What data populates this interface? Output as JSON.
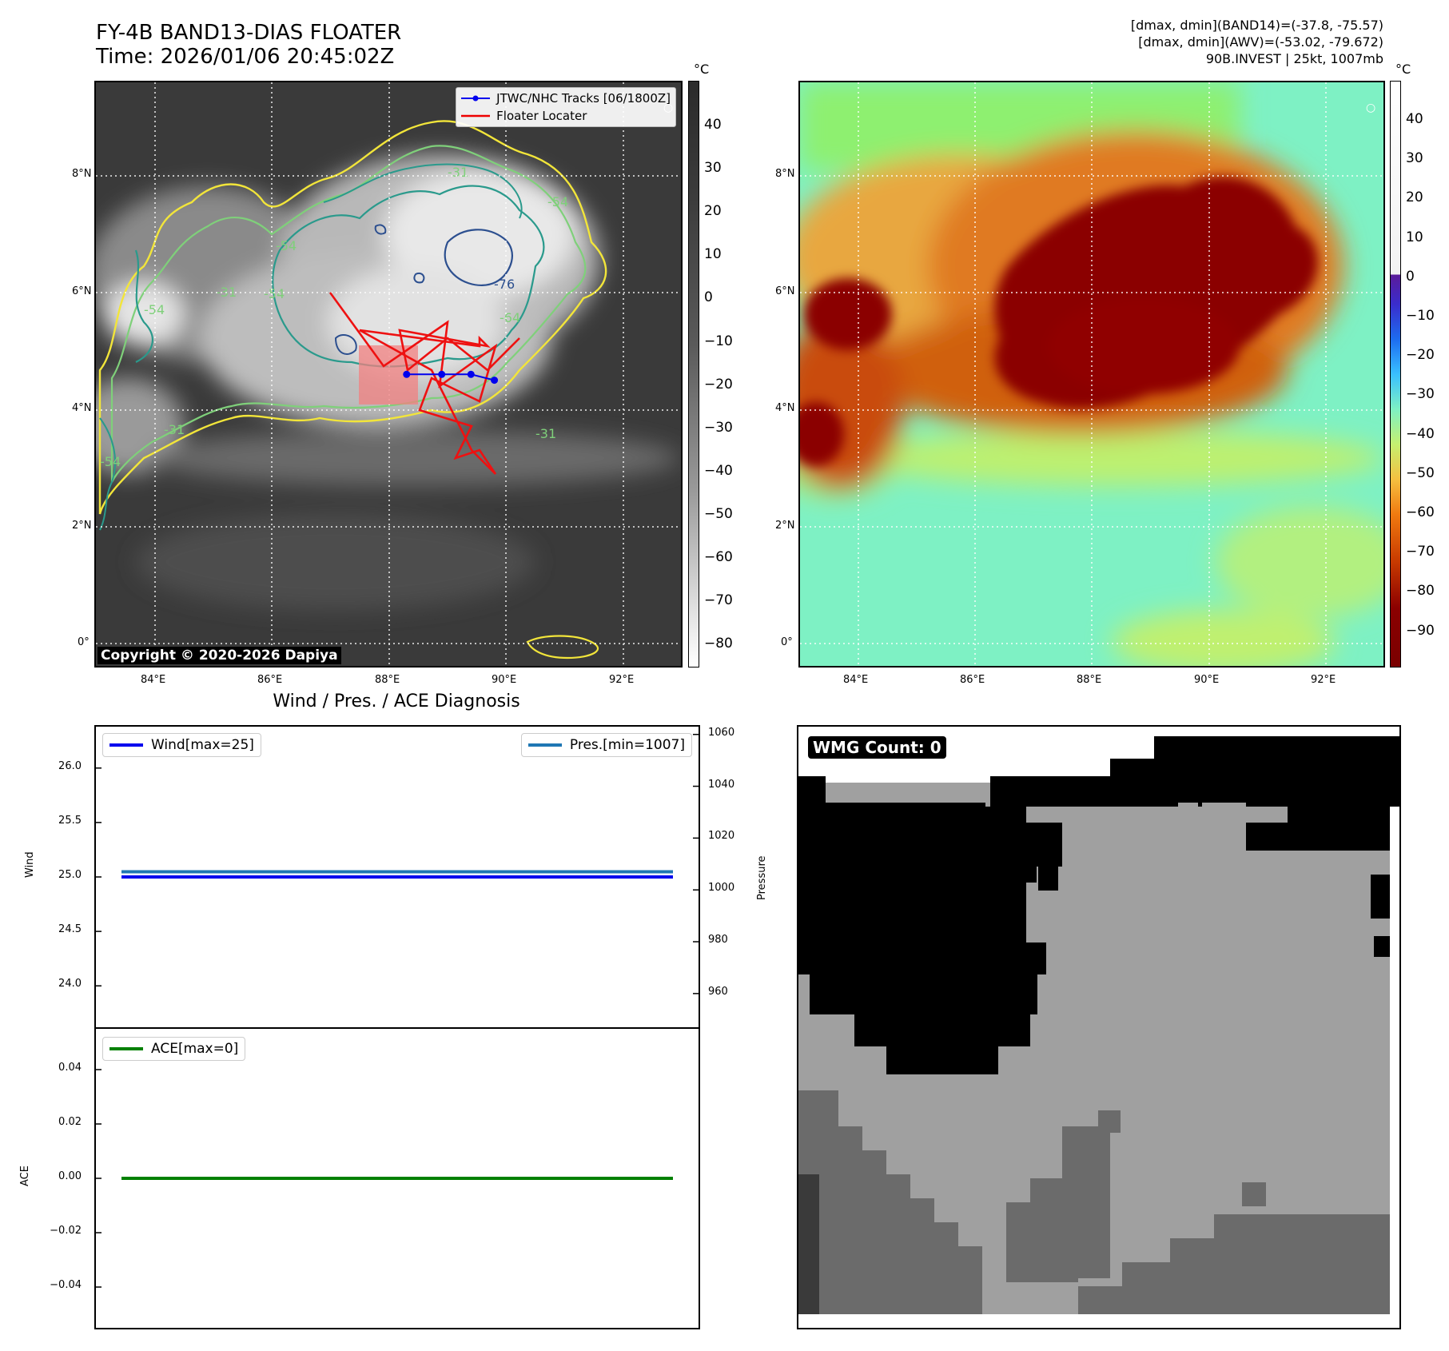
{
  "header": {
    "title_line1": "FY-4B BAND13-DIAS FLOATER",
    "title_line2": "Time: 2026/01/06 20:45:02Z",
    "info_line1": "[dmax, dmin](BAND14)=(-37.8, -75.57)",
    "info_line2": "[dmax, dmin](AWV)=(-53.02, -79.672)",
    "info_line3": "90B.INVEST | 25kt, 1007mb"
  },
  "map": {
    "lat_ticks": [
      "8°N",
      "6°N",
      "4°N",
      "2°N",
      "0°"
    ],
    "lon_ticks": [
      "84°E",
      "86°E",
      "88°E",
      "90°E",
      "92°E"
    ],
    "legend_track": "JTWC/NHC Tracks [06/1800Z]",
    "legend_locator": "Floater Locater",
    "copyright": "Copyright © 2020-2026 Dapiya",
    "contour_labels": [
      "-31",
      "-31",
      "-54",
      "-54",
      "-54",
      "-54",
      "-64",
      "-76",
      "-31",
      "-31",
      "-54"
    ]
  },
  "colorbars": {
    "unit": "°C",
    "gray_ticks": [
      "40",
      "30",
      "20",
      "10",
      "0",
      "−10",
      "−20",
      "−30",
      "−40",
      "−50",
      "−60",
      "−70",
      "−80"
    ],
    "color_ticks": [
      "40",
      "30",
      "20",
      "10",
      "0",
      "−10",
      "−20",
      "−30",
      "−40",
      "−50",
      "−60",
      "−70",
      "−80",
      "−90"
    ]
  },
  "diagnosis": {
    "title": "Wind / Pres. / ACE Diagnosis",
    "wind_legend": "Wind[max=25]",
    "pres_legend": "Pres.[min=1007]",
    "ace_legend": "ACE[max=0]",
    "wind_axis_label": "Wind",
    "pres_axis_label": "Pressure",
    "ace_axis_label": "ACE"
  },
  "wmg": {
    "label": "WMG Count: 0"
  },
  "colors": {
    "track": "#0000ee",
    "locator": "#ee0000",
    "wind": "#0000ee",
    "pres": "#1f77b4",
    "ace": "#008000",
    "contour_yellow": "#f2e53a",
    "contour_green": "#7fd07a",
    "contour_teal": "#2a9a8c",
    "contour_blue": "#2c4f8f"
  },
  "chart_data": [
    {
      "type": "line",
      "name": "wind-pressure",
      "series": [
        {
          "name": "Wind",
          "axis": "left",
          "x": [
            0,
            1
          ],
          "values": [
            25,
            25
          ]
        },
        {
          "name": "Pres.",
          "axis": "right",
          "x": [
            0,
            1
          ],
          "values": [
            1007,
            1007
          ]
        }
      ],
      "yticks_left": [
        24.0,
        24.5,
        25.0,
        25.5,
        26.0
      ],
      "yticks_right": [
        960,
        980,
        1000,
        1020,
        1040,
        1060
      ],
      "ylim_left": [
        23.62,
        26.38
      ],
      "ylim_right": [
        947,
        1063
      ],
      "ylabel": "Wind",
      "ylabel_right": "Pressure"
    },
    {
      "type": "line",
      "name": "ace",
      "series": [
        {
          "name": "ACE",
          "x": [
            0,
            1
          ],
          "values": [
            0,
            0
          ]
        }
      ],
      "yticks": [
        -0.04,
        -0.02,
        0.0,
        0.02,
        0.04
      ],
      "ylim": [
        -0.055,
        0.055
      ],
      "ylabel": "ACE"
    },
    {
      "type": "line",
      "name": "floater-track",
      "x": [
        88.3,
        88.9,
        89.4,
        89.8
      ],
      "values": [
        4.6,
        4.6,
        4.6,
        4.5
      ],
      "xlabel_ticks": [
        "84°E",
        "86°E",
        "88°E",
        "90°E",
        "92°E"
      ],
      "ylabel_ticks": [
        "0°",
        "2°N",
        "4°N",
        "6°N",
        "8°N"
      ]
    }
  ]
}
